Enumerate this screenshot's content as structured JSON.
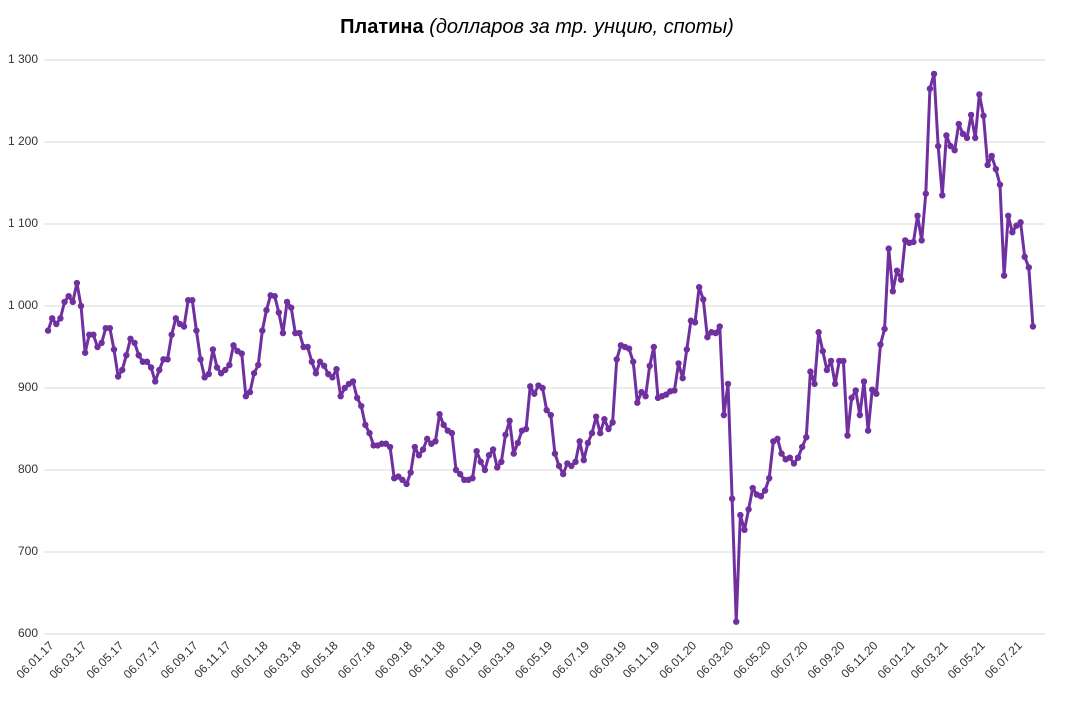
{
  "chart_data": {
    "type": "line",
    "title": "Платина",
    "subtitle": "(долларов за тр. унцию, споты)",
    "color": "#7030a0",
    "grid": true,
    "ylim": [
      600,
      1300
    ],
    "yticks": [
      600,
      700,
      800,
      900,
      {
        "value": 1000,
        "label": "1 000"
      },
      {
        "value": 1100,
        "label": "1 100"
      },
      {
        "value": 1200,
        "label": "1 200"
      },
      {
        "value": 1300,
        "label": "1 300"
      }
    ],
    "categories": [
      "06.01.17",
      null,
      null,
      null,
      null,
      null,
      null,
      null,
      "06.03.17",
      null,
      null,
      null,
      null,
      null,
      null,
      null,
      null,
      "06.05.17",
      null,
      null,
      null,
      null,
      null,
      null,
      null,
      null,
      "06.07.17",
      null,
      null,
      null,
      null,
      null,
      null,
      null,
      null,
      "06.09.17",
      null,
      null,
      null,
      null,
      null,
      null,
      null,
      "06.11.17",
      null,
      null,
      null,
      null,
      null,
      null,
      null,
      null,
      "06.01.18",
      null,
      null,
      null,
      null,
      null,
      null,
      null,
      "06.03.18",
      null,
      null,
      null,
      null,
      null,
      null,
      null,
      null,
      "06.05.18",
      null,
      null,
      null,
      null,
      null,
      null,
      null,
      null,
      "06.07.18",
      null,
      null,
      null,
      null,
      null,
      null,
      null,
      null,
      "06.09.18",
      null,
      null,
      null,
      null,
      null,
      null,
      null,
      "06.11.18",
      null,
      null,
      null,
      null,
      null,
      null,
      null,
      null,
      "06.01.19",
      null,
      null,
      null,
      null,
      null,
      null,
      null,
      "06.03.19",
      null,
      null,
      null,
      null,
      null,
      null,
      null,
      null,
      "06.05.19",
      null,
      null,
      null,
      null,
      null,
      null,
      null,
      null,
      "06.07.19",
      null,
      null,
      null,
      null,
      null,
      null,
      null,
      null,
      "06.09.19",
      null,
      null,
      null,
      null,
      null,
      null,
      null,
      "06.11.19",
      null,
      null,
      null,
      null,
      null,
      null,
      null,
      null,
      "06.01.20",
      null,
      null,
      null,
      null,
      null,
      null,
      null,
      null,
      "06.03.20",
      null,
      null,
      null,
      null,
      null,
      null,
      null,
      null,
      "06.05.20",
      null,
      null,
      null,
      null,
      null,
      null,
      null,
      null,
      "06.07.20",
      null,
      null,
      null,
      null,
      null,
      null,
      null,
      null,
      "06.09.20",
      null,
      null,
      null,
      null,
      null,
      null,
      null,
      "06.11.20",
      null,
      null,
      null,
      null,
      null,
      null,
      null,
      null,
      "06.01.21",
      null,
      null,
      null,
      null,
      null,
      null,
      null,
      "06.03.21",
      null,
      null,
      null,
      null,
      null,
      null,
      null,
      null,
      "06.05.21",
      null,
      null,
      null,
      null,
      null,
      null,
      null,
      null,
      "06.07.21",
      null,
      null,
      null,
      null
    ],
    "values": [
      970,
      985,
      978,
      985,
      1005,
      1012,
      1005,
      1028,
      1000,
      943,
      965,
      965,
      950,
      955,
      973,
      973,
      947,
      914,
      922,
      940,
      960,
      955,
      940,
      932,
      932,
      925,
      908,
      922,
      935,
      935,
      965,
      985,
      978,
      975,
      1007,
      1007,
      970,
      935,
      913,
      917,
      947,
      925,
      918,
      922,
      928,
      952,
      945,
      942,
      890,
      895,
      918,
      928,
      970,
      995,
      1013,
      1012,
      992,
      967,
      1005,
      998,
      967,
      967,
      950,
      950,
      932,
      918,
      932,
      927,
      917,
      913,
      923,
      890,
      900,
      905,
      908,
      888,
      878,
      855,
      845,
      830,
      830,
      832,
      832,
      828,
      790,
      792,
      788,
      783,
      797,
      828,
      818,
      825,
      838,
      832,
      835,
      868,
      855,
      848,
      845,
      800,
      795,
      788,
      788,
      790,
      823,
      810,
      800,
      818,
      825,
      803,
      810,
      843,
      860,
      820,
      833,
      848,
      850,
      902,
      893,
      903,
      900,
      873,
      867,
      820,
      805,
      795,
      808,
      805,
      810,
      835,
      812,
      833,
      845,
      865,
      845,
      862,
      850,
      858,
      935,
      952,
      950,
      948,
      932,
      882,
      895,
      890,
      927,
      950,
      888,
      890,
      892,
      896,
      897,
      930,
      912,
      947,
      982,
      980,
      1023,
      1008,
      962,
      968,
      967,
      975,
      867,
      905,
      765,
      615,
      745,
      727,
      752,
      778,
      770,
      768,
      775,
      790,
      835,
      838,
      820,
      813,
      815,
      808,
      815,
      828,
      840,
      920,
      905,
      968,
      945,
      922,
      933,
      905,
      933,
      933,
      842,
      888,
      897,
      867,
      908,
      848,
      898,
      893,
      953,
      972,
      1070,
      1018,
      1043,
      1032,
      1080,
      1077,
      1078,
      1110,
      1080,
      1137,
      1265,
      1283,
      1195,
      1135,
      1208,
      1195,
      1190,
      1222,
      1210,
      1205,
      1233,
      1205,
      1258,
      1232,
      1172,
      1183,
      1167,
      1148,
      1037,
      1110,
      1090,
      1098,
      1102,
      1060,
      1047,
      975
    ]
  }
}
